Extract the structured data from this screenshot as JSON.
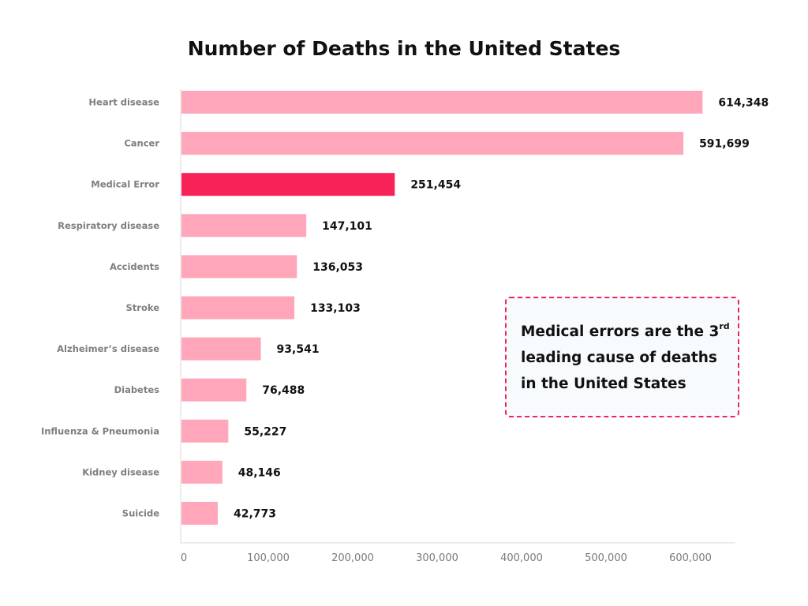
{
  "chart_data": {
    "type": "bar",
    "orientation": "horizontal",
    "title": "Number of Deaths in the United States",
    "xlabel": "",
    "ylabel": "",
    "xlim": [
      0,
      650000
    ],
    "grid": false,
    "categories": [
      "Heart disease",
      "Cancer",
      "Medical Error",
      "Respiratory disease",
      "Accidents",
      "Stroke",
      "Alzheimer’s disease",
      "Diabetes",
      "Influenza & Pneumonia",
      "Kidney disease",
      "Suicide"
    ],
    "values": [
      614348,
      591699,
      251454,
      147101,
      136053,
      133103,
      93541,
      76488,
      55227,
      48146,
      42773
    ],
    "value_labels": [
      "614,348",
      "591,699",
      "251,454",
      "147,101",
      "136,053",
      "133,103",
      "93,541",
      "76,488",
      "55,227",
      "48,146",
      "42,773"
    ],
    "highlight_index": 2,
    "x_ticks": [
      0,
      100000,
      200000,
      300000,
      400000,
      500000,
      600000
    ],
    "x_tick_labels": [
      "0",
      "100,000",
      "200,000",
      "300,000",
      "400,000",
      "500,000",
      "600,000"
    ],
    "colors": {
      "bar": "#ffa6ba",
      "highlight": "#f72358",
      "axis": "#e6e6e6",
      "note_border": "#f0245a",
      "note_bg": "#f7fbfd"
    },
    "annotation": {
      "line1_before": "Medical errors are the 3",
      "line1_sup": "rd",
      "line2": "leading cause of deaths",
      "line3": "in the United States"
    }
  }
}
